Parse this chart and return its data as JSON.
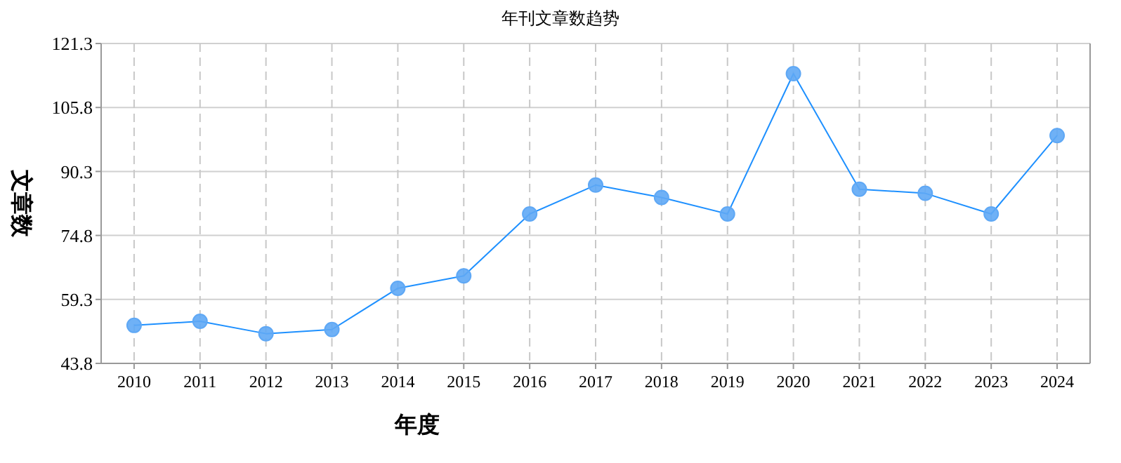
{
  "chart_data": {
    "type": "line",
    "title": "年刊文章数趋势",
    "xlabel": "年度",
    "ylabel": "文章数",
    "categories": [
      "2010",
      "2011",
      "2012",
      "2013",
      "2014",
      "2015",
      "2016",
      "2017",
      "2018",
      "2019",
      "2020",
      "2021",
      "2022",
      "2023",
      "2024"
    ],
    "series": [
      {
        "color": "#1e90ff",
        "values": [
          53,
          54,
          51,
          52,
          62,
          65,
          80,
          87,
          84,
          80,
          114,
          86,
          85,
          80,
          99
        ]
      }
    ],
    "ylim": [
      43.8,
      121.3
    ],
    "yticks": [
      43.8,
      59.3,
      74.8,
      90.3,
      105.8,
      121.3
    ],
    "grid": true,
    "marker": "circle",
    "line_style": "solid"
  }
}
